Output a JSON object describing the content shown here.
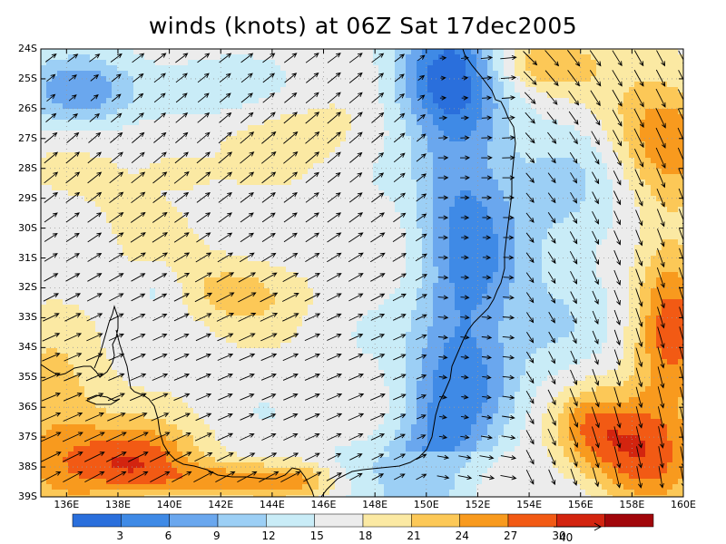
{
  "title": "winds (knots) at 06Z Sat 17dec2005",
  "lat_labels": [
    "24S",
    "25S",
    "26S",
    "27S",
    "28S",
    "29S",
    "30S",
    "31S",
    "32S",
    "33S",
    "34S",
    "35S",
    "36S",
    "37S",
    "38S",
    "39S"
  ],
  "lon_labels": [
    "136E",
    "138E",
    "140E",
    "142E",
    "144E",
    "146E",
    "148E",
    "150E",
    "152E",
    "154E",
    "156E",
    "158E",
    "160E"
  ],
  "colorbar": {
    "colors": [
      "#2a6fdc",
      "#3f8ae6",
      "#6aa7ee",
      "#9ccff5",
      "#c9ecf7",
      "#ececec",
      "#fbe9a3",
      "#fcc857",
      "#f89a1e",
      "#f25a14",
      "#d3240f",
      "#a1060a"
    ],
    "labels": [
      "3",
      "6",
      "9",
      "12",
      "15",
      "18",
      "21",
      "24",
      "27",
      "30"
    ]
  },
  "reference_vector": {
    "label": "40"
  },
  "colors": {
    "land_outline": "#000000",
    "grid": "#9a9a9a",
    "arrow": "#000000"
  }
}
